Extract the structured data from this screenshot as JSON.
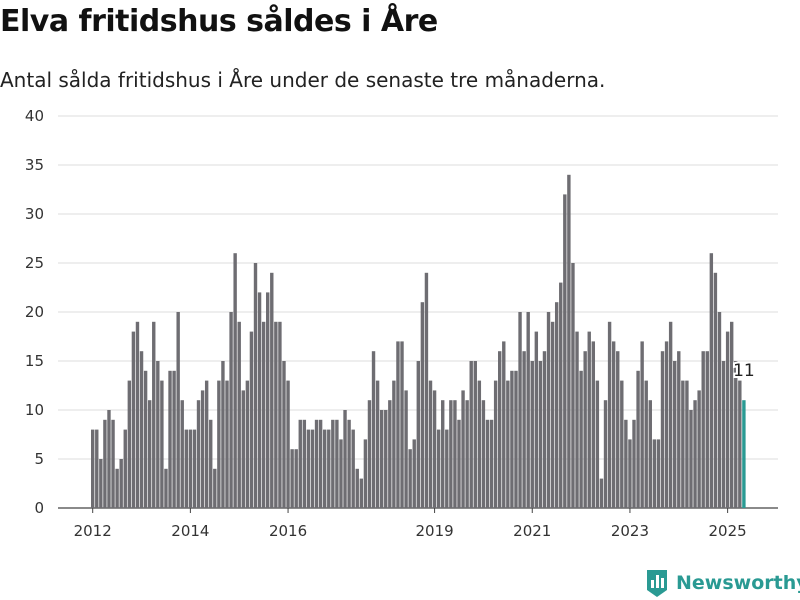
{
  "title": "Elva fritidshus såldes i Åre",
  "subtitle": "Antal sålda fritidshus i Åre under de senaste tre månaderna.",
  "brand": {
    "name": "Newsworthy",
    "icon": "newsworthy-logo-icon",
    "color": "#2a9a93"
  },
  "chart_data": {
    "type": "bar",
    "ylim": [
      0,
      40
    ],
    "yticks": [
      0,
      5,
      10,
      15,
      20,
      25,
      30,
      35,
      40
    ],
    "xticks": [
      {
        "label": "2012",
        "index": 0
      },
      {
        "label": "2014",
        "index": 24
      },
      {
        "label": "2016",
        "index": 48
      },
      {
        "label": "2019",
        "index": 84
      },
      {
        "label": "2021",
        "index": 108
      },
      {
        "label": "2023",
        "index": 132
      },
      {
        "label": "2025",
        "index": 156
      }
    ],
    "grid": true,
    "bar_color": "#6e6d72",
    "highlight_color": "#2a9a93",
    "highlight_label": "11",
    "values": [
      8,
      8,
      5,
      9,
      10,
      9,
      4,
      5,
      8,
      13,
      18,
      19,
      16,
      14,
      11,
      19,
      15,
      13,
      4,
      14,
      14,
      20,
      11,
      8,
      8,
      8,
      11,
      12,
      13,
      9,
      4,
      13,
      15,
      13,
      20,
      26,
      19,
      12,
      13,
      18,
      25,
      22,
      19,
      22,
      24,
      19,
      19,
      15,
      13,
      6,
      6,
      9,
      9,
      8,
      8,
      9,
      9,
      8,
      8,
      9,
      9,
      7,
      10,
      9,
      8,
      4,
      3,
      7,
      11,
      16,
      13,
      10,
      10,
      11,
      13,
      17,
      17,
      12,
      6,
      7,
      15,
      21,
      24,
      13,
      12,
      8,
      11,
      8,
      11,
      11,
      9,
      12,
      11,
      15,
      15,
      13,
      11,
      9,
      9,
      13,
      16,
      17,
      13,
      14,
      14,
      20,
      16,
      20,
      15,
      18,
      15,
      16,
      20,
      19,
      21,
      23,
      32,
      34,
      25,
      18,
      14,
      16,
      18,
      17,
      13,
      3,
      11,
      19,
      17,
      16,
      13,
      9,
      7,
      9,
      14,
      17,
      13,
      11,
      7,
      7,
      16,
      17,
      19,
      15,
      16,
      13,
      13,
      10,
      11,
      12,
      16,
      16,
      26,
      24,
      20,
      15,
      18,
      19,
      15,
      13,
      11
    ]
  }
}
